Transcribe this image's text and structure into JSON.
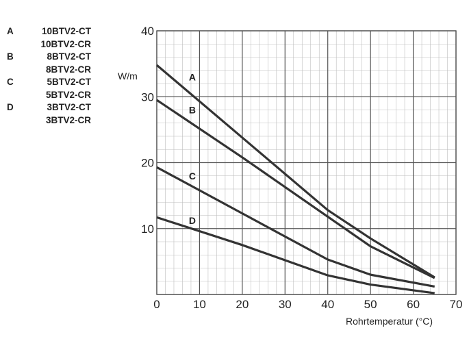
{
  "legend": [
    {
      "key": "A",
      "models": [
        "10BTV2-CT",
        "10BTV2-CR"
      ]
    },
    {
      "key": "B",
      "models": [
        "8BTV2-CT",
        "8BTV2-CR"
      ]
    },
    {
      "key": "C",
      "models": [
        "5BTV2-CT",
        "5BTV2-CR"
      ]
    },
    {
      "key": "D",
      "models": [
        "3BTV2-CT",
        "3BTV2-CR"
      ]
    }
  ],
  "chart_data": {
    "type": "line",
    "title": "",
    "xlabel": "Rohrtemperatur (°C)",
    "ylabel": "W/m",
    "xlim": [
      0,
      70
    ],
    "ylim": [
      0,
      40
    ],
    "xticks": [
      0,
      10,
      20,
      30,
      40,
      50,
      60,
      70
    ],
    "yticks": [
      10,
      20,
      30,
      40
    ],
    "grid": "major every 10, minor every 2",
    "series": [
      {
        "name": "A",
        "x": [
          0,
          20,
          40,
          50,
          65
        ],
        "y": [
          34.8,
          23.8,
          12.8,
          8.5,
          2.6
        ]
      },
      {
        "name": "B",
        "x": [
          0,
          20,
          40,
          50,
          65
        ],
        "y": [
          29.5,
          20.8,
          11.8,
          7.3,
          2.5
        ]
      },
      {
        "name": "C",
        "x": [
          0,
          20,
          40,
          50,
          65
        ],
        "y": [
          19.3,
          12.3,
          5.3,
          3.0,
          1.2
        ]
      },
      {
        "name": "D",
        "x": [
          0,
          20,
          40,
          50,
          65
        ],
        "y": [
          11.7,
          7.5,
          2.9,
          1.5,
          0.2
        ]
      }
    ],
    "series_label_positions": [
      {
        "name": "A",
        "x": 7.5,
        "y": 33.0
      },
      {
        "name": "B",
        "x": 7.5,
        "y": 28.0
      },
      {
        "name": "C",
        "x": 7.5,
        "y": 18.0
      },
      {
        "name": "D",
        "x": 7.5,
        "y": 11.2
      }
    ],
    "colors": {
      "line": "#333333",
      "major_grid": "#555555",
      "minor_grid": "#bdbdbd",
      "text": "#222222"
    }
  }
}
